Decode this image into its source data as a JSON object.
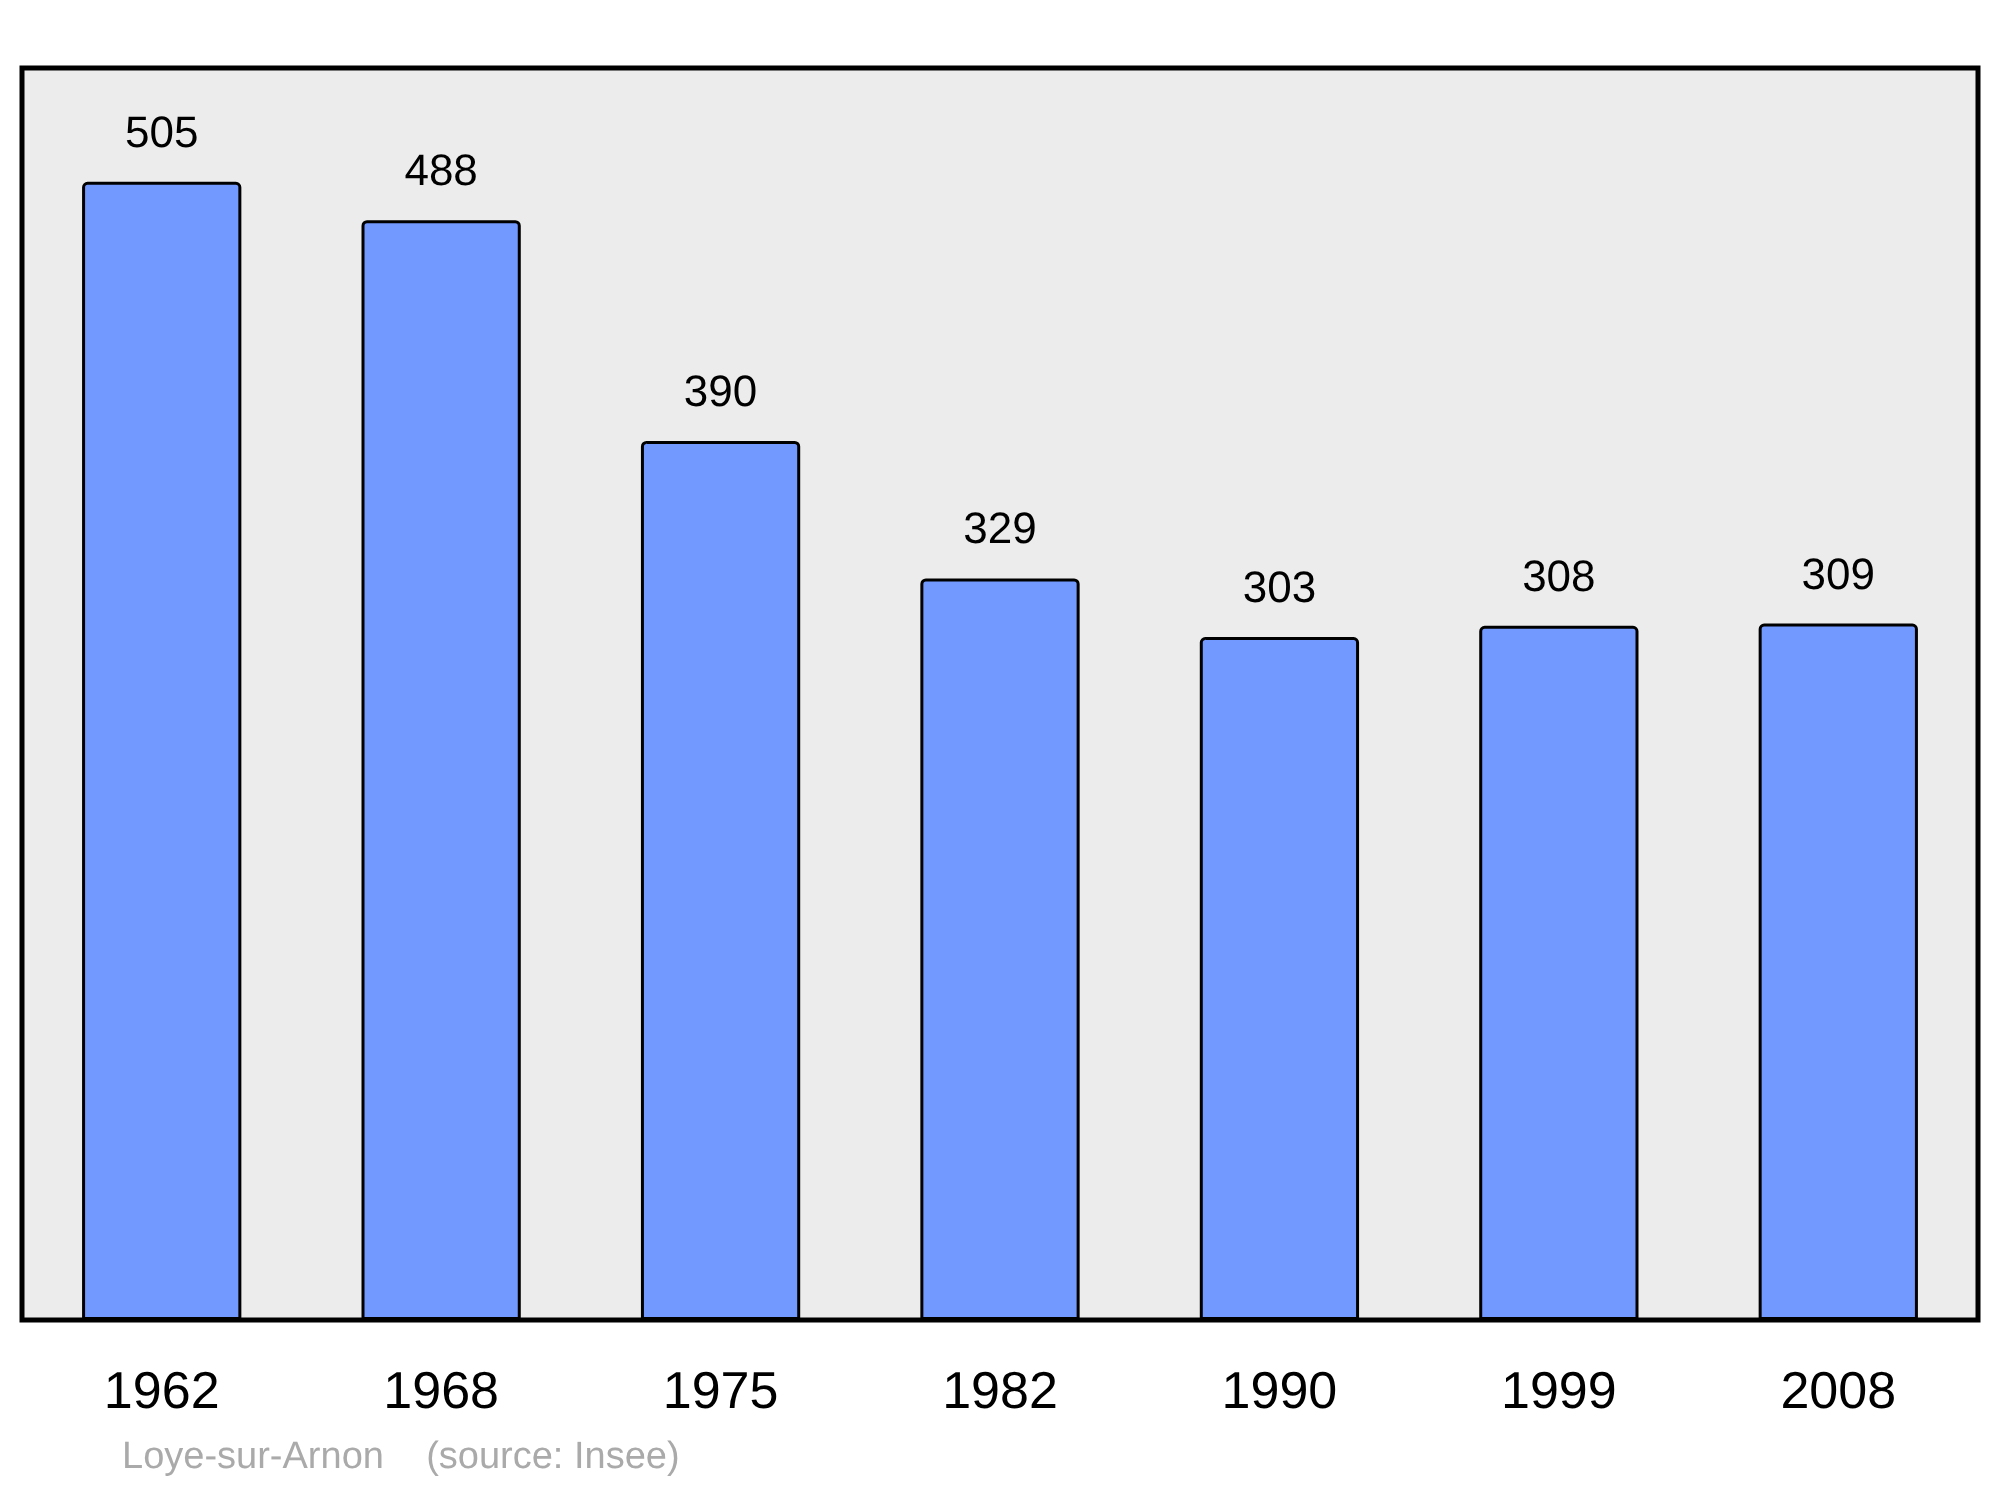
{
  "chart_data": {
    "type": "bar",
    "categories": [
      "1962",
      "1968",
      "1975",
      "1982",
      "1990",
      "1999",
      "2008"
    ],
    "values": [
      505,
      488,
      390,
      329,
      303,
      308,
      309
    ],
    "color": "#7299ff",
    "data_labels": true,
    "tick_labels": "x",
    "annotations": [
      "Loye-sur-Arnon    (source: Insee)"
    ]
  }
}
